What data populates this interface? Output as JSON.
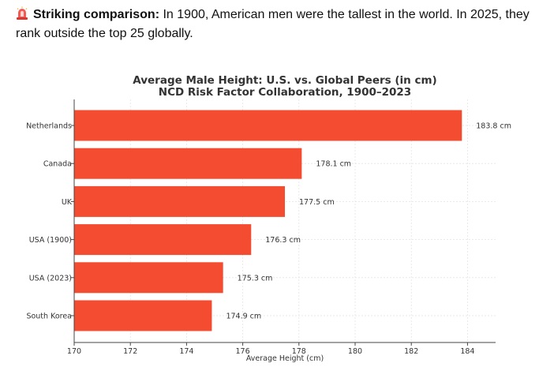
{
  "intro": {
    "icon": "rotating-light-icon",
    "bold": "Striking comparison:",
    "text": " In 1900, American men were the tallest in the world. In 2025, they rank outside the top 25 globally."
  },
  "chart_data": {
    "type": "bar",
    "orientation": "horizontal",
    "title": "Average Male Height: U.S. vs. Global Peers (in cm)",
    "subtitle": "NCD Risk Factor Collaboration, 1900–2023",
    "xlabel": "Average Height (cm)",
    "ylabel": "",
    "categories": [
      "Netherlands",
      "Canada",
      "UK",
      "USA (1900)",
      "USA (2023)",
      "South Korea"
    ],
    "values": [
      183.8,
      178.1,
      177.5,
      176.3,
      175.3,
      174.9
    ],
    "data_labels": [
      "183.8 cm",
      "178.1 cm",
      "177.5 cm",
      "176.3 cm",
      "175.3 cm",
      "174.9 cm"
    ],
    "xlim": [
      170,
      185
    ],
    "xticks": [
      170,
      172,
      174,
      176,
      178,
      180,
      182,
      184
    ],
    "grid": true,
    "bar_color": "#f44c30"
  }
}
